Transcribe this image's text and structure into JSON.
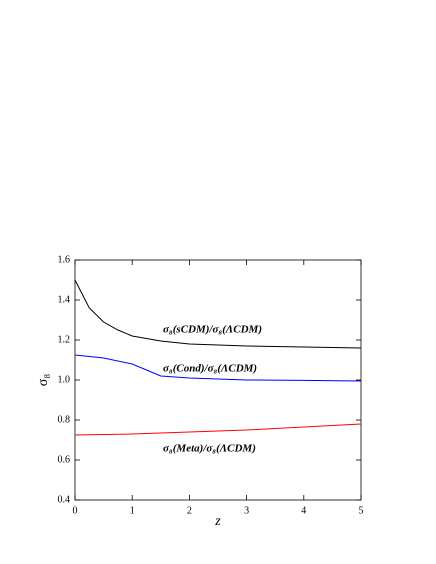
{
  "chart_data": {
    "type": "line",
    "xlabel": "z",
    "ylabel": "σ₈",
    "xlim": [
      0,
      5
    ],
    "ylim": [
      0.4,
      1.6
    ],
    "xticks": [
      0,
      1,
      2,
      3,
      4,
      5
    ],
    "yticks": [
      0.4,
      0.6,
      0.8,
      {
        "value": 1,
        "label": "1.0"
      },
      1.2,
      1.4,
      1.6
    ],
    "series": [
      {
        "name": "σ₈(sCDM)/σ₈(ΛCDM)",
        "color": "#000000",
        "x": [
          0,
          0.25,
          0.5,
          0.75,
          1,
          1.5,
          2,
          3,
          4,
          5
        ],
        "values": [
          1.5,
          1.36,
          1.29,
          1.25,
          1.22,
          1.195,
          1.18,
          1.17,
          1.165,
          1.16
        ]
      },
      {
        "name": "σ₈(Cond)/σ₈(ΛCDM)",
        "color": "#0000ff",
        "x": [
          0,
          0.5,
          1,
          1.5,
          2,
          3,
          4,
          5
        ],
        "values": [
          1.125,
          1.11,
          1.08,
          1.02,
          1.01,
          1.0,
          0.998,
          0.995
        ]
      },
      {
        "name": "σ₈(Meta)/σ₈(ΛCDM)",
        "color": "#ff0000",
        "x": [
          0,
          1,
          2,
          3,
          4,
          5
        ],
        "values": [
          0.725,
          0.73,
          0.74,
          0.75,
          0.765,
          0.78
        ]
      }
    ]
  }
}
